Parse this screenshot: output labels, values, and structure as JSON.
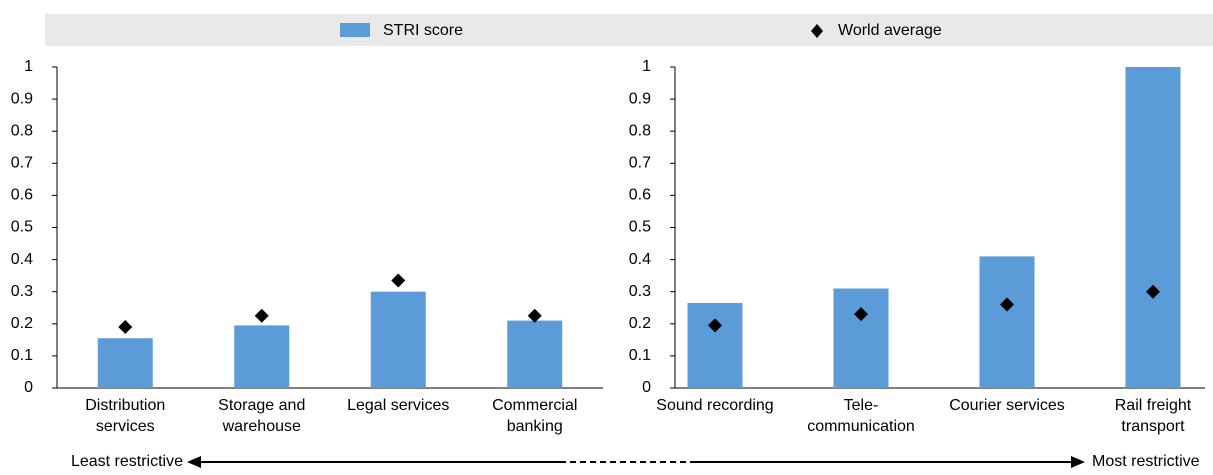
{
  "chart_data": [
    {
      "type": "bar",
      "categories": [
        [
          "Distribution",
          "services"
        ],
        [
          "Storage and",
          "warehouse"
        ],
        [
          "Legal services"
        ],
        [
          "Commercial",
          "banking"
        ]
      ],
      "series": [
        {
          "name": "STRI score",
          "color": "#5b9bd7",
          "values": [
            0.155,
            0.195,
            0.3,
            0.21
          ]
        },
        {
          "name": "World average",
          "color": "#000000",
          "marker": "diamond",
          "values": [
            0.19,
            0.225,
            0.335,
            0.225
          ]
        }
      ],
      "ylim": [
        0,
        1
      ],
      "yticks": [
        0,
        0.1,
        0.2,
        0.3,
        0.4,
        0.5,
        0.6,
        0.7,
        0.8,
        0.9,
        1
      ]
    },
    {
      "type": "bar",
      "categories": [
        [
          "Sound recording"
        ],
        [
          "Tele-",
          "communication"
        ],
        [
          "Courier services"
        ],
        [
          "Rail freight",
          "transport"
        ]
      ],
      "series": [
        {
          "name": "STRI score",
          "color": "#5b9bd7",
          "values": [
            0.265,
            0.31,
            0.41,
            1.0
          ]
        },
        {
          "name": "World average",
          "color": "#000000",
          "marker": "diamond",
          "values": [
            0.195,
            0.23,
            0.26,
            0.3
          ]
        }
      ],
      "ylim": [
        0,
        1
      ],
      "yticks": [
        0,
        0.1,
        0.2,
        0.3,
        0.4,
        0.5,
        0.6,
        0.7,
        0.8,
        0.9,
        1
      ]
    }
  ],
  "axis_annotation": {
    "left": "Least restrictive",
    "right": "Most restrictive"
  }
}
